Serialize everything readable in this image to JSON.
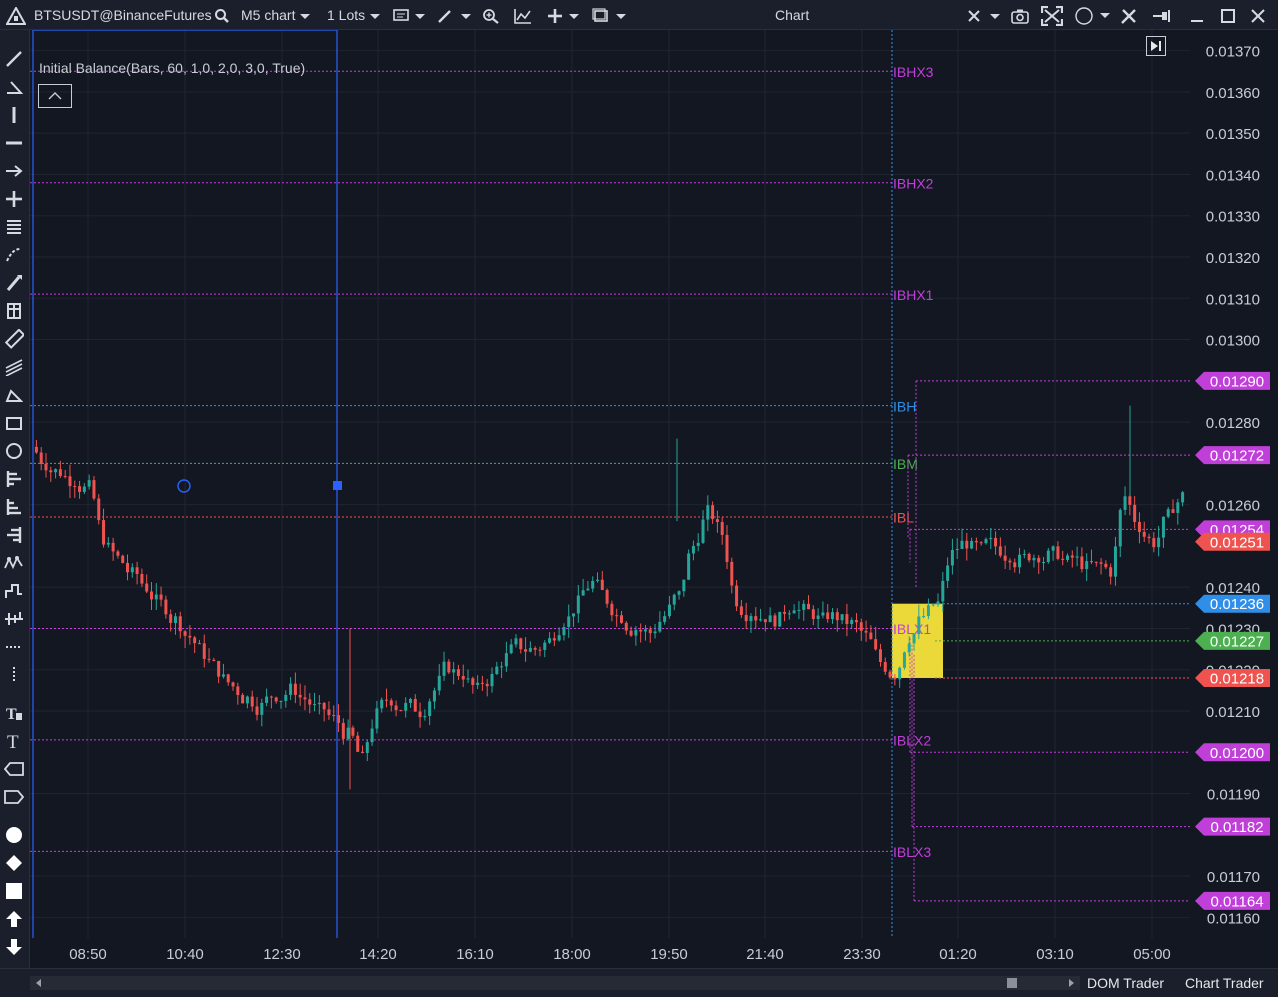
{
  "toolbar": {
    "symbol": "BTSUSDT@BinanceFutures",
    "timeframe": "M5 chart",
    "lots": "1 Lots",
    "title": "Chart"
  },
  "indicator": {
    "label": "Initial Balance(Bars, 60, 1,0, 2,0, 3,0, True)"
  },
  "bottom": {
    "tabs": [
      "DOM Trader",
      "Chart Trader"
    ]
  },
  "colors": {
    "background": "#131722",
    "up": "#26a69a",
    "down": "#ef5350",
    "magenta": "#c13fd9",
    "blue": "#2f8fe8",
    "green": "#4caf50",
    "red": "#ef5350",
    "yellow": "#f7e43b"
  },
  "chart_data": {
    "type": "candlestick",
    "ylim": [
      0.01155,
      0.01375
    ],
    "y_ticks": [
      "0.01160",
      "0.01170",
      "0.01190",
      "0.01210",
      "0.01220",
      "0.01230",
      "0.01240",
      "0.01260",
      "0.01280",
      "0.01300",
      "0.01310",
      "0.01320",
      "0.01330",
      "0.01340",
      "0.01350",
      "0.01360",
      "0.01370"
    ],
    "x_ticks": [
      "08:50",
      "10:40",
      "12:30",
      "14:20",
      "16:10",
      "18:00",
      "19:50",
      "21:40",
      "23:30",
      "01:20",
      "03:10",
      "05:00"
    ],
    "levels": [
      {
        "name": "IBHX3",
        "value": 0.01365,
        "color": "magenta"
      },
      {
        "name": "IBHX2",
        "value": 0.01338,
        "color": "magenta"
      },
      {
        "name": "IBHX1",
        "value": 0.01311,
        "color": "magenta"
      },
      {
        "name": "IBH",
        "value": 0.01284,
        "color": "blue"
      },
      {
        "name": "IBM",
        "value": 0.0127,
        "color": "green"
      },
      {
        "name": "IBL",
        "value": 0.01257,
        "color": "red"
      },
      {
        "name": "IBLX1",
        "value": 0.0123,
        "color": "magenta"
      },
      {
        "name": "IBLX2",
        "value": 0.01203,
        "color": "magenta"
      },
      {
        "name": "IBLX3",
        "value": 0.01176,
        "color": "magenta"
      }
    ],
    "price_tags": [
      {
        "value": "0.01290",
        "color": "magenta"
      },
      {
        "value": "0.01272",
        "color": "magenta"
      },
      {
        "value": "0.01254",
        "color": "magenta"
      },
      {
        "value": "0.01251",
        "color": "red"
      },
      {
        "value": "0.01236",
        "color": "blue"
      },
      {
        "value": "0.01227",
        "color": "green"
      },
      {
        "value": "0.01218",
        "color": "red"
      },
      {
        "value": "0.01200",
        "color": "magenta"
      },
      {
        "value": "0.01182",
        "color": "magenta"
      },
      {
        "value": "0.01164",
        "color": "magenta"
      }
    ],
    "series": [
      {
        "name": "close",
        "values": [
          0.0127,
          0.01268,
          0.01266,
          0.01264,
          0.01252,
          0.01247,
          0.01243,
          0.0124,
          0.01236,
          0.01232,
          0.01228,
          0.01224,
          0.0122,
          0.01216,
          0.01213,
          0.01211,
          0.01214,
          0.01215,
          0.01213,
          0.0121,
          0.01208,
          0.01204,
          0.01198,
          0.01209,
          0.01213,
          0.01211,
          0.0121,
          0.01215,
          0.01221,
          0.01219,
          0.01215,
          0.01218,
          0.01223,
          0.01226,
          0.01225,
          0.01227,
          0.01232,
          0.01236,
          0.01241,
          0.01237,
          0.01233,
          0.0123,
          0.01229,
          0.01233,
          0.01238,
          0.0125,
          0.01258,
          0.01253,
          0.01237,
          0.01234,
          0.01233,
          0.01232,
          0.01236,
          0.01234,
          0.01232,
          0.01233,
          0.01231,
          0.01228,
          0.01222,
          0.01219,
          0.01228,
          0.01233,
          0.01236,
          0.01248,
          0.01251,
          0.01249,
          0.0125,
          0.01248,
          0.01247,
          0.01248,
          0.01248,
          0.01246,
          0.01246,
          0.01245,
          0.01244,
          0.01262,
          0.01255,
          0.01251,
          0.01257,
          0.01262
        ]
      }
    ]
  }
}
